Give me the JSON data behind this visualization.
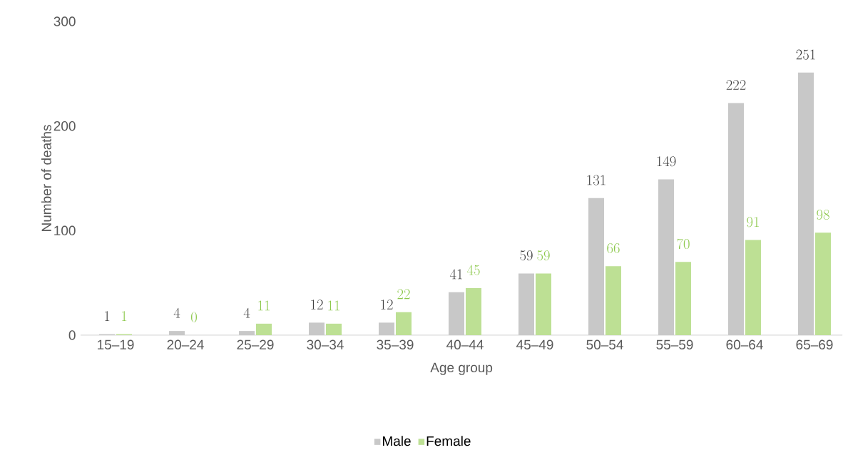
{
  "chart_data": {
    "type": "bar",
    "xlabel": "Age group",
    "ylabel": "Number of deaths",
    "categories": [
      "15–19",
      "20–24",
      "25–29",
      "30–34",
      "35–39",
      "40–44",
      "45–49",
      "50–54",
      "55–59",
      "60–64",
      "65–69"
    ],
    "series": [
      {
        "name": "Male",
        "color": "#c8c8c8",
        "values": [
          1,
          4,
          4,
          12,
          12,
          41,
          59,
          131,
          149,
          222,
          251
        ]
      },
      {
        "name": "Female",
        "color": "#bde094",
        "values": [
          1,
          0,
          11,
          11,
          22,
          45,
          59,
          66,
          70,
          91,
          98
        ]
      }
    ],
    "ylim": [
      0,
      300
    ],
    "yticks": [
      0,
      100,
      200,
      300
    ],
    "grid": false,
    "legend": "bottom",
    "data_labels": true
  }
}
